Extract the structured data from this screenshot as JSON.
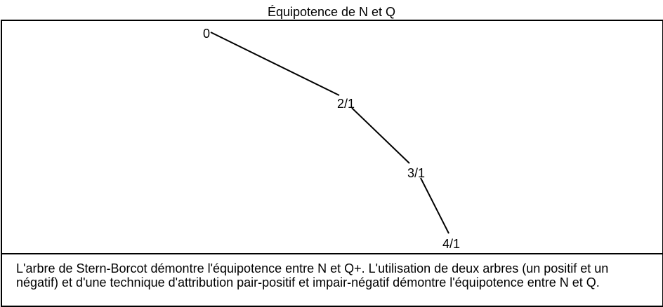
{
  "title": "Équipotence de N et Q",
  "diagram": {
    "nodes": [
      "0",
      "2/1",
      "3/1",
      "4/1"
    ]
  },
  "caption": "L'arbre de Stern-Borcot démontre l'équipotence entre N et Q+. L'utilisation de deux arbres (un positif et un négatif) et d'une technique d'attribution pair-positif et impair-négatif démontre l'équipotence entre N et Q."
}
